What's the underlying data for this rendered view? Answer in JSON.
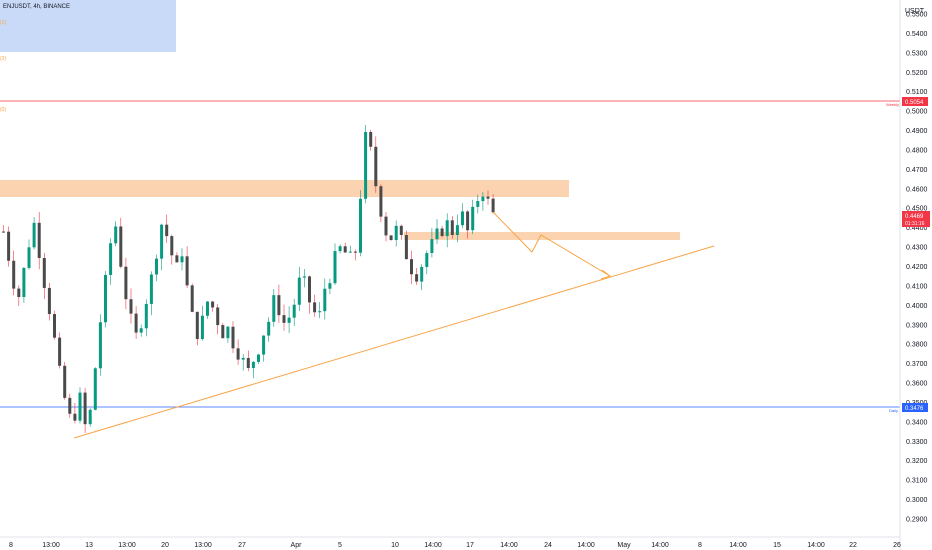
{
  "header": {
    "symbol_text": "ENJUSDT, 4h, BINANCE",
    "fib_labels": [
      "(1)",
      "(3)",
      "(0)"
    ]
  },
  "price_axis": {
    "unit_label": "USDT",
    "ticks": [
      "0.5500",
      "0.5400",
      "0.5300",
      "0.5200",
      "0.5100",
      "0.5000",
      "0.4900",
      "0.4800",
      "0.4700",
      "0.4600",
      "0.4500",
      "0.4400",
      "0.4300",
      "0.4200",
      "0.4100",
      "0.4000",
      "0.3900",
      "0.3800",
      "0.3700",
      "0.3600",
      "0.3500",
      "0.3400",
      "0.3300",
      "0.3200",
      "0.3100",
      "0.3000",
      "0.2900"
    ]
  },
  "time_axis": {
    "ticks": [
      "8",
      "13:00",
      "13",
      "13:00",
      "20",
      "13:00",
      "27",
      "Apr",
      "5",
      "10",
      "14:00",
      "17",
      "14:00",
      "24",
      "14:00",
      "May",
      "14:00",
      "8",
      "14:00",
      "15",
      "14:00",
      "22",
      "26"
    ]
  },
  "levels": {
    "weekly": {
      "label": "Weekly",
      "price": "0.5054",
      "color": "#f23645"
    },
    "current": {
      "price": "0.4469",
      "countdown": "01:31:16",
      "color": "#f23645"
    },
    "daily": {
      "label": "Daily",
      "price": "0.3476",
      "color": "#2962ff"
    }
  },
  "colors": {
    "up": "#089981",
    "down": "#f23645",
    "zone": "#fcd3b0",
    "trendline": "#f7a548",
    "projection": "#f7a548",
    "info_box": "#c9daf8"
  },
  "chart_data": {
    "type": "candlestick",
    "title": "ENJUSDT, 4h, BINANCE",
    "ylabel": "USDT",
    "ylim": [
      0.285,
      0.555
    ],
    "close_path": [
      0.438,
      0.425,
      0.412,
      0.405,
      0.418,
      0.432,
      0.442,
      0.428,
      0.412,
      0.398,
      0.382,
      0.365,
      0.352,
      0.342,
      0.344,
      0.352,
      0.338,
      0.345,
      0.368,
      0.392,
      0.412,
      0.432,
      0.441,
      0.422,
      0.405,
      0.392,
      0.384,
      0.392,
      0.403,
      0.414,
      0.428,
      0.442,
      0.436,
      0.426,
      0.419,
      0.428,
      0.409,
      0.394,
      0.386,
      0.392,
      0.402,
      0.399,
      0.392,
      0.386,
      0.388,
      0.381,
      0.376,
      0.371,
      0.366,
      0.372,
      0.378,
      0.386,
      0.392,
      0.402,
      0.398,
      0.391,
      0.394,
      0.401,
      0.412,
      0.411,
      0.402,
      0.396,
      0.395,
      0.409,
      0.415,
      0.424,
      0.429,
      0.427,
      0.424,
      0.428,
      0.457,
      0.486,
      0.479,
      0.462,
      0.449,
      0.438,
      0.435,
      0.439,
      0.433,
      0.426,
      0.419,
      0.416,
      0.421,
      0.427,
      0.431,
      0.436,
      0.439,
      0.442,
      0.438,
      0.444,
      0.446,
      0.438,
      0.447,
      0.455,
      0.459,
      0.453,
      0.447
    ]
  }
}
